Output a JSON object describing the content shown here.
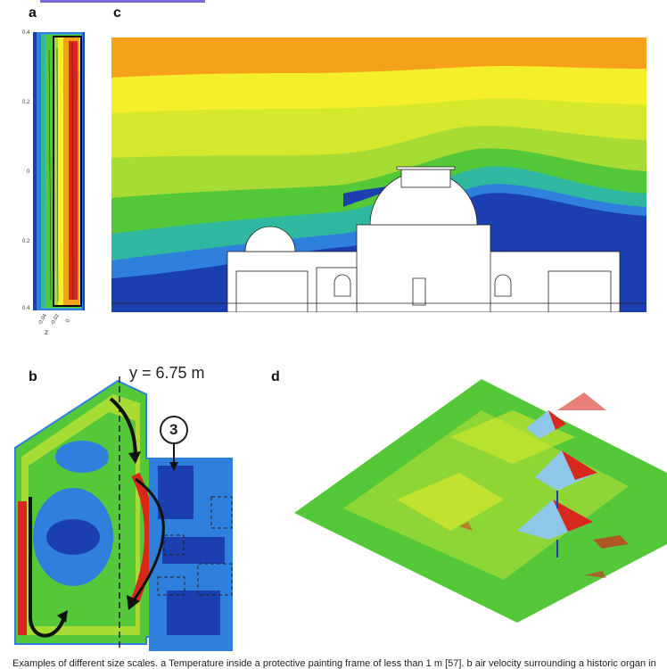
{
  "panels": {
    "a": {
      "letter": "a",
      "y_ticks": [
        "0.4",
        "0.2",
        "0",
        "0.2",
        "0.4"
      ],
      "z_ticks": [
        "-0.04",
        "-0.02",
        "0"
      ],
      "z_label": "z"
    },
    "b": {
      "letter": "b",
      "section_label": "y = 6.75 m",
      "room_marker": "3"
    },
    "c": {
      "letter": "c"
    },
    "d": {
      "letter": "d"
    }
  },
  "caption": "Examples of different size scales. a Temperature inside a protective painting frame of less than 1 m [57]. b air velocity surrounding a historic organ in",
  "colors": {
    "hot": "#d7281d",
    "warm": "#f5a21a",
    "mid": "#f4ef2a",
    "cool": "#55c83a",
    "cold": "#2f7fdd",
    "coldest": "#1b3fb0",
    "link": "#7b6ad6"
  }
}
